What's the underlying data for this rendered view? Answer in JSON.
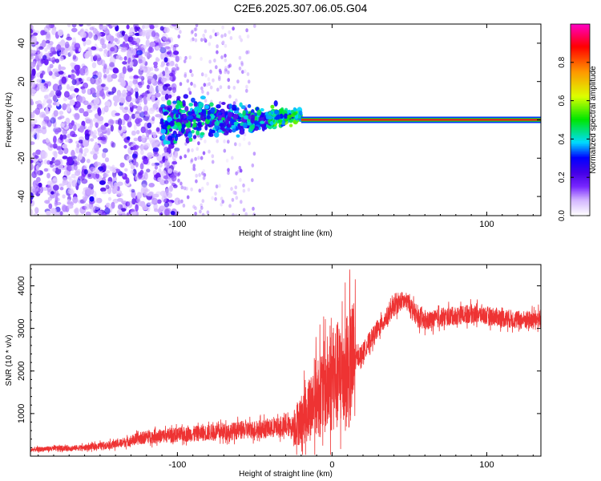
{
  "page_title": "C2E6.2025.307.06.05.G04",
  "chart_data": [
    {
      "type": "heatmap",
      "xlabel": "Height of straight line (km)",
      "ylabel": "Frequency (Hz)",
      "xlim": [
        -195,
        135
      ],
      "ylim": [
        -50,
        50
      ],
      "x_ticks": [
        -100,
        0,
        100
      ],
      "x_tick_labels": [
        "-100",
        "",
        "100"
      ],
      "y_ticks": [
        -40,
        -20,
        0,
        20,
        40
      ],
      "y_tick_labels": [
        "-40",
        "-20",
        "0",
        "20",
        "40"
      ],
      "colorbar": {
        "label": "Normalized spectral amplitude",
        "range": [
          0,
          1
        ],
        "ticks": [
          0.0,
          0.2,
          0.4,
          0.6,
          0.8
        ],
        "tick_labels": [
          "0.0",
          "0.2",
          "0.4",
          "0.6",
          "0.8"
        ],
        "colors": [
          "#ffffff",
          "#b380ff",
          "#6600ff",
          "#0000ff",
          "#00ffff",
          "#00ff00",
          "#ffff00",
          "#ff8000",
          "#ff0000",
          "#ff00ff"
        ]
      },
      "features": [
        {
          "desc": "broadband noise",
          "x_range": [
            -195,
            -100
          ],
          "f_range": [
            -50,
            50
          ],
          "amplitude": 0.12
        },
        {
          "desc": "weak scattered noise",
          "x_range": [
            -100,
            -50
          ],
          "f_range": [
            -50,
            50
          ],
          "amplitude": 0.05
        },
        {
          "desc": "signal cluster",
          "x_range": [
            -110,
            -20
          ],
          "f_range": [
            -10,
            10
          ],
          "amplitude": 0.3
        },
        {
          "desc": "carrier line",
          "x_range": [
            -20,
            135
          ],
          "f_range": [
            0,
            0
          ],
          "amplitude": 1.0
        }
      ]
    },
    {
      "type": "line",
      "xlabel": "Height of straight line (km)",
      "ylabel": "SNR (10 * v/v)",
      "xlim": [
        -195,
        135
      ],
      "ylim": [
        0,
        4500
      ],
      "x_ticks": [
        -100,
        0,
        100
      ],
      "x_tick_labels": [
        "-100",
        "0",
        "100"
      ],
      "y_ticks": [
        1000,
        2000,
        3000,
        4000
      ],
      "y_tick_labels": [
        "1000",
        "2000",
        "3000",
        "4000"
      ],
      "color": "#ee3333",
      "series": [
        {
          "x": [
            -195,
            -180,
            -160,
            -140,
            -120,
            -100,
            -80,
            -60,
            -40,
            -25,
            -20,
            -15,
            -10,
            -5,
            0,
            5,
            10,
            15,
            20,
            25,
            30,
            35,
            40,
            45,
            50,
            55,
            60,
            70,
            80,
            90,
            100,
            110,
            120,
            130,
            135
          ],
          "values": [
            150,
            180,
            200,
            280,
            450,
            500,
            550,
            600,
            650,
            700,
            850,
            1100,
            1400,
            1600,
            1800,
            1900,
            2000,
            2250,
            2450,
            2750,
            3000,
            3250,
            3500,
            3650,
            3600,
            3250,
            3150,
            3250,
            3300,
            3350,
            3300,
            3250,
            3200,
            3200,
            3250
          ]
        }
      ]
    }
  ]
}
